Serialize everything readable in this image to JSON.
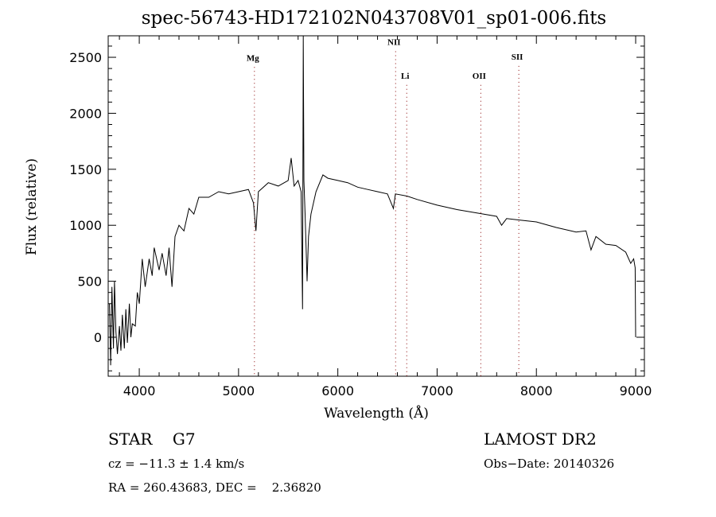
{
  "chart_data": {
    "type": "line",
    "title": "spec-56743-HD172102N043708V01_sp01-006.fits",
    "xlabel": "Wavelength (Å)",
    "ylabel": "Flux (relative)",
    "xlim": [
      3687,
      9088
    ],
    "ylim": [
      -348,
      2692
    ],
    "xticks": [
      4000,
      5000,
      6000,
      7000,
      8000,
      9000
    ],
    "yticks": [
      0,
      500,
      1000,
      1500,
      2000,
      2500
    ],
    "grid": false,
    "lines": [
      {
        "label": "Mg",
        "x": 5160,
        "label_flux": 2470
      },
      {
        "label": "NII",
        "x": 6582,
        "label_flux": 2610
      },
      {
        "label": "Li",
        "x": 6694,
        "label_flux": 2310
      },
      {
        "label": "OII",
        "x": 7440,
        "label_flux": 2310
      },
      {
        "label": "SII",
        "x": 7823,
        "label_flux": 2480
      }
    ],
    "series": [
      {
        "name": "spectrum",
        "x": [
          3700,
          3712,
          3725,
          3740,
          3750,
          3765,
          3780,
          3800,
          3815,
          3830,
          3850,
          3865,
          3880,
          3900,
          3915,
          3930,
          3960,
          3980,
          4000,
          4030,
          4060,
          4100,
          4130,
          4150,
          4200,
          4230,
          4270,
          4300,
          4330,
          4360,
          4400,
          4450,
          4500,
          4550,
          4600,
          4700,
          4800,
          4900,
          5000,
          5100,
          5150,
          5175,
          5200,
          5300,
          5400,
          5500,
          5530,
          5560,
          5600,
          5630,
          5645,
          5652,
          5658,
          5670,
          5690,
          5705,
          5730,
          5780,
          5850,
          5900,
          6000,
          6100,
          6200,
          6300,
          6400,
          6500,
          6560,
          6580,
          6700,
          6800,
          7000,
          7200,
          7400,
          7600,
          7650,
          7700,
          7800,
          8000,
          8200,
          8400,
          8500,
          8550,
          8600,
          8700,
          8800,
          8900,
          8950,
          8980,
          8995,
          9000
        ],
        "y": [
          300,
          -250,
          450,
          -100,
          500,
          50,
          -150,
          100,
          -120,
          200,
          -100,
          250,
          -50,
          300,
          0,
          120,
          100,
          400,
          300,
          700,
          450,
          700,
          550,
          800,
          600,
          750,
          550,
          800,
          450,
          900,
          1000,
          950,
          1150,
          1100,
          1250,
          1250,
          1300,
          1280,
          1300,
          1320,
          1200,
          950,
          1300,
          1380,
          1350,
          1400,
          1600,
          1350,
          1400,
          1300,
          250,
          2692,
          1400,
          1100,
          500,
          900,
          1100,
          1300,
          1450,
          1420,
          1400,
          1380,
          1340,
          1320,
          1300,
          1280,
          1150,
          1280,
          1260,
          1230,
          1180,
          1140,
          1110,
          1080,
          1000,
          1060,
          1050,
          1030,
          980,
          940,
          950,
          780,
          900,
          830,
          820,
          760,
          660,
          700,
          620,
          0
        ]
      }
    ]
  },
  "footer": {
    "object": "STAR    G7",
    "velocity": "cz = −11.3 ± 1.4 km/s",
    "coords": "RA = 260.43683, DEC =    2.36820",
    "survey": "LAMOST DR2",
    "obs_date": "Obs−Date: 20140326"
  }
}
